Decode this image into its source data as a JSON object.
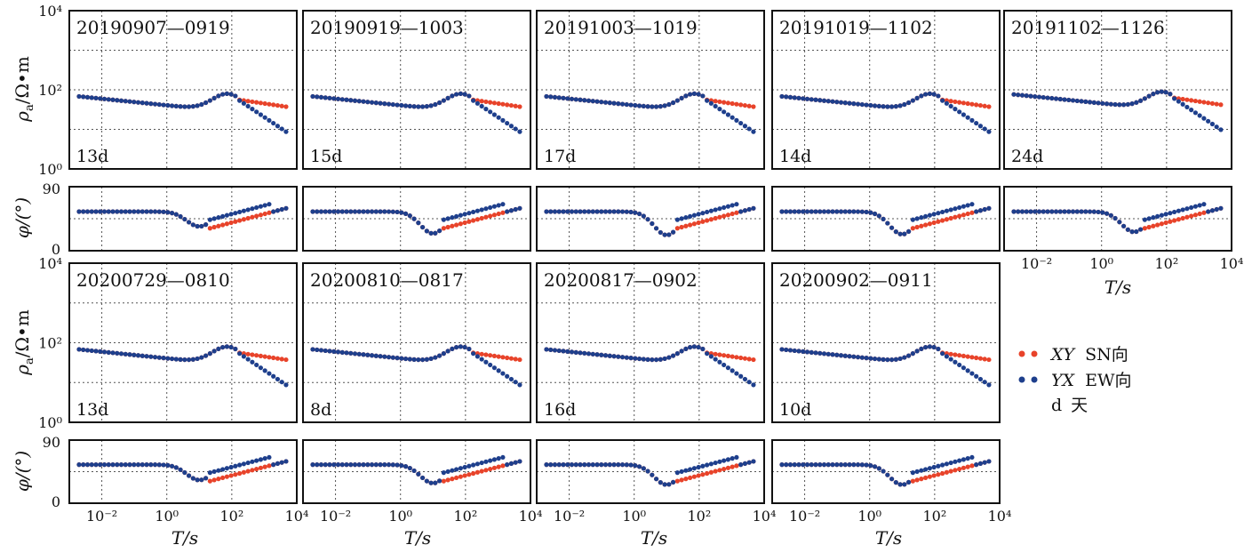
{
  "colors": {
    "xy": "#e8432a",
    "yx": "#1e3f8c",
    "grid": "#555555",
    "frame": "#111111"
  },
  "axes": {
    "rho_ylabel": "ρ",
    "rho_ylabel_sub": "a",
    "rho_ylabel_unit": "/Ω•m",
    "phi_ylabel": "φ/(°)",
    "xlabel": "T/s",
    "x_log_range": [
      -3,
      4
    ],
    "rho_log_range": [
      0,
      4
    ],
    "phi_range": [
      0,
      90
    ],
    "x_ticks": [
      "10⁻²",
      "10⁰",
      "10²",
      "10⁴"
    ],
    "rho_ticks": [
      "10⁴",
      "10²",
      "10⁰"
    ],
    "phi_ticks": [
      "90",
      "0"
    ]
  },
  "legend": {
    "xy_label": "XY",
    "xy_suffix": "SN向",
    "yx_label": "YX",
    "yx_suffix": "EW向",
    "d_label": "d",
    "d_suffix": "天"
  },
  "chart_data": [
    {
      "type": "scatter",
      "title": "20190907—0919",
      "days": "13d",
      "shape": "a",
      "dip": 0.95
    },
    {
      "type": "scatter",
      "title": "20190919—1003",
      "days": "15d",
      "shape": "a",
      "dip": 1.4
    },
    {
      "type": "scatter",
      "title": "20191003—1019",
      "days": "17d",
      "shape": "a",
      "dip": 1.5
    },
    {
      "type": "scatter",
      "title": "20191019—1102",
      "days": "14d",
      "shape": "a",
      "dip": 1.45
    },
    {
      "type": "scatter",
      "title": "20191102—1126",
      "days": "24d",
      "shape": "b",
      "dip": 1.3
    },
    {
      "type": "scatter",
      "title": "20200729—0810",
      "days": "13d",
      "shape": "c",
      "dip": 1.0
    },
    {
      "type": "scatter",
      "title": "20200810—0817",
      "days": "8d",
      "shape": "d",
      "dip": 1.2
    },
    {
      "type": "scatter",
      "title": "20200817—0902",
      "days": "16d",
      "shape": "c",
      "dip": 1.3
    },
    {
      "type": "scatter",
      "title": "20200902—0911",
      "days": "10d",
      "shape": "e",
      "dip": 1.3
    }
  ]
}
